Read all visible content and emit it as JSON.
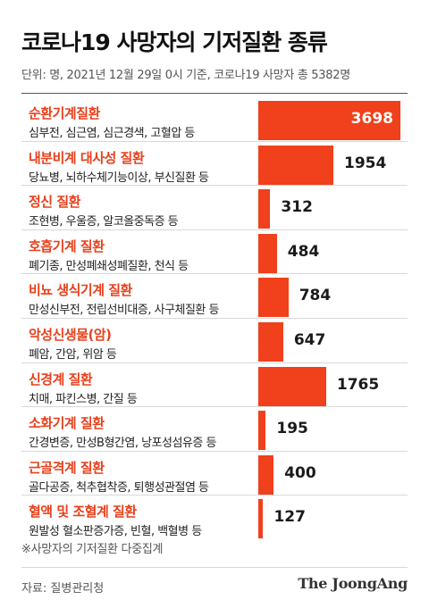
{
  "title": "코로나19 사망자의 기저질환 종류",
  "subtitle": "단위: 명, 2021년 12월 29일 0시 기준, 코로나19 사망자 총 5382명",
  "note": "※사망자의 기저질환 다중집계",
  "source": "자료: 질병관리청",
  "brand": "The JoongAng",
  "colors": {
    "bar": "#f0401c",
    "category_text": "#e8401c"
  },
  "chart_data": {
    "type": "bar",
    "orientation": "horizontal",
    "title": "코로나19 사망자의 기저질환 종류",
    "unit": "명",
    "grid": false,
    "legend": "none",
    "xlim": [
      0,
      3698
    ],
    "categories": [
      "순환기계질환",
      "내분비계 대사성 질환",
      "정신 질환",
      "호흡기계 질환",
      "비뇨 생식기계 질환",
      "악성신생물(암)",
      "신경계 질환",
      "소화기계 질환",
      "근골격계 질환",
      "혈액 및 조혈계 질환"
    ],
    "descriptions": [
      "심부전, 심근염, 심근경색, 고혈압 등",
      "당뇨병, 뇌하수체기능이상, 부신질환 등",
      "조현병, 우울증, 알코올중독증 등",
      "폐기종, 만성폐쇄성폐질환, 천식 등",
      "만성신부전, 전립선비대증, 사구체질환 등",
      "폐암, 간암, 위암 등",
      "치매, 파킨스병, 간질 등",
      "간경변증, 만성B형간염, 낭포성섬유증 등",
      "골다공증, 척추협착증, 퇴행성관절염 등",
      "원발성 혈소판증가증, 빈혈, 백혈병 등"
    ],
    "values": [
      3698,
      1954,
      312,
      484,
      784,
      647,
      1765,
      195,
      400,
      127
    ],
    "value_labels": [
      "3698",
      "1954",
      "312",
      "484",
      "784",
      "647",
      "1765",
      "195",
      "400",
      "127"
    ]
  }
}
